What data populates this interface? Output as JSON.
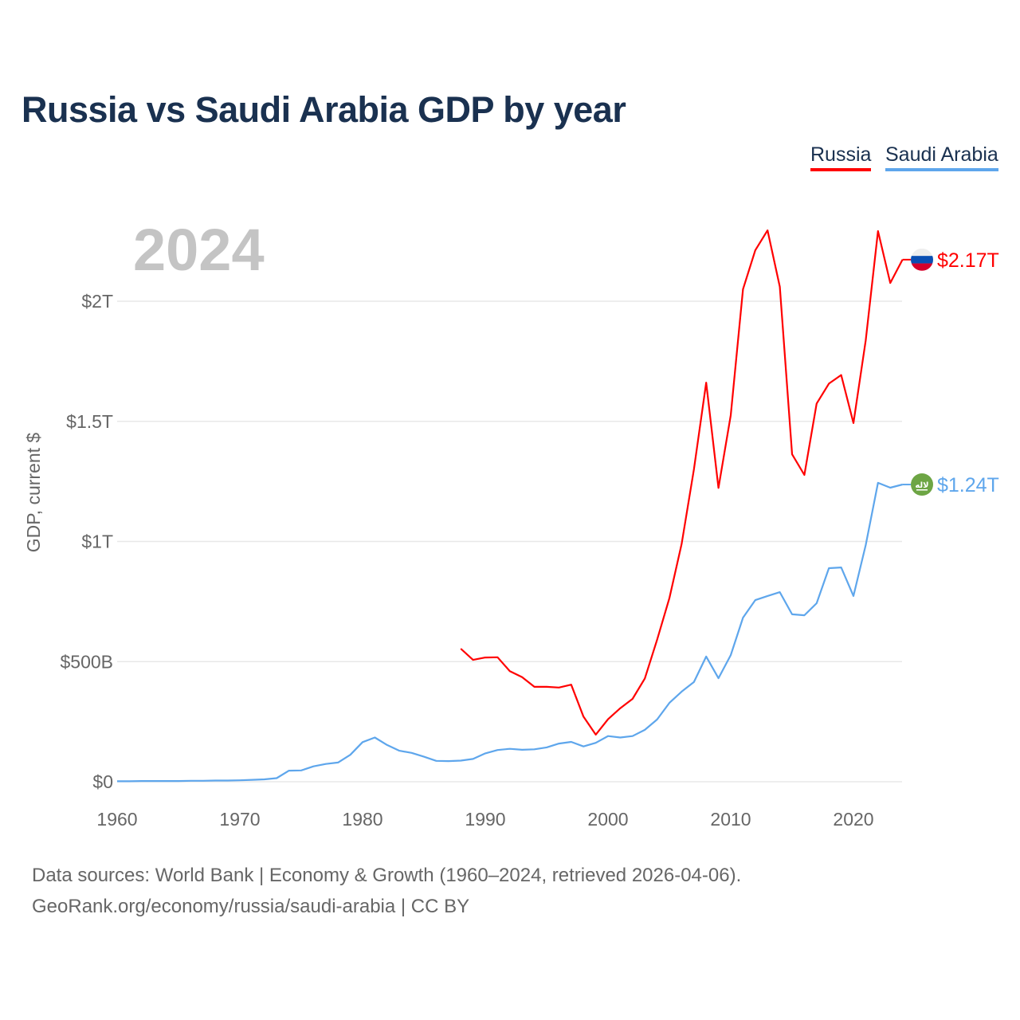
{
  "chart_data": {
    "type": "line",
    "title": "Russia vs Saudi Arabia GDP by year",
    "ylabel": "GDP, current $",
    "xlabel": "",
    "year_label": "2024",
    "xlim": [
      1960,
      2024
    ],
    "ylim": [
      0,
      2.4
    ],
    "x_ticks": [
      1960,
      1970,
      1980,
      1990,
      2000,
      2010,
      2020
    ],
    "y_ticks": [
      {
        "v": 0,
        "label": "$0"
      },
      {
        "v": 0.5,
        "label": "$500B"
      },
      {
        "v": 1,
        "label": "$1T"
      },
      {
        "v": 1.5,
        "label": "$1.5T"
      },
      {
        "v": 2,
        "label": "$2T"
      }
    ],
    "units": "trillion USD",
    "legend_placement": "top-right",
    "series": [
      {
        "name": "Russia",
        "color": "#ff0000",
        "end_label": "$2.17T",
        "flag": "russia-flag",
        "x": [
          1988,
          1989,
          1990,
          1991,
          1992,
          1993,
          1994,
          1995,
          1996,
          1997,
          1998,
          1999,
          2000,
          2001,
          2002,
          2003,
          2004,
          2005,
          2006,
          2007,
          2008,
          2009,
          2010,
          2011,
          2012,
          2013,
          2014,
          2015,
          2016,
          2017,
          2018,
          2019,
          2020,
          2021,
          2022,
          2023,
          2024
        ],
        "values": [
          0.554,
          0.507,
          0.517,
          0.518,
          0.46,
          0.435,
          0.395,
          0.395,
          0.392,
          0.404,
          0.271,
          0.196,
          0.26,
          0.306,
          0.345,
          0.43,
          0.591,
          0.764,
          0.99,
          1.3,
          1.661,
          1.223,
          1.525,
          2.05,
          2.212,
          2.295,
          2.06,
          1.363,
          1.277,
          1.574,
          1.657,
          1.693,
          1.493,
          1.837,
          2.292,
          2.076,
          2.173
        ]
      },
      {
        "name": "Saudi Arabia",
        "color": "#5ea6ec",
        "end_label": "$1.24T",
        "flag": "saudi-arabia-flag",
        "x": [
          1960,
          1961,
          1962,
          1963,
          1964,
          1965,
          1966,
          1967,
          1968,
          1969,
          1970,
          1971,
          1972,
          1973,
          1974,
          1975,
          1976,
          1977,
          1978,
          1979,
          1980,
          1981,
          1982,
          1983,
          1984,
          1985,
          1986,
          1987,
          1988,
          1989,
          1990,
          1991,
          1992,
          1993,
          1994,
          1995,
          1996,
          1997,
          1998,
          1999,
          2000,
          2001,
          2002,
          2003,
          2004,
          2005,
          2006,
          2007,
          2008,
          2009,
          2010,
          2011,
          2012,
          2013,
          2014,
          2015,
          2016,
          2017,
          2018,
          2019,
          2020,
          2021,
          2022,
          2023,
          2024
        ],
        "values": [
          0.002,
          0.002,
          0.003,
          0.003,
          0.003,
          0.003,
          0.004,
          0.004,
          0.005,
          0.005,
          0.006,
          0.008,
          0.01,
          0.015,
          0.046,
          0.047,
          0.064,
          0.074,
          0.08,
          0.112,
          0.165,
          0.184,
          0.153,
          0.129,
          0.12,
          0.104,
          0.087,
          0.086,
          0.088,
          0.095,
          0.118,
          0.132,
          0.137,
          0.133,
          0.135,
          0.143,
          0.159,
          0.166,
          0.147,
          0.162,
          0.19,
          0.184,
          0.19,
          0.216,
          0.259,
          0.328,
          0.375,
          0.415,
          0.521,
          0.431,
          0.527,
          0.683,
          0.756,
          0.773,
          0.789,
          0.697,
          0.693,
          0.743,
          0.889,
          0.892,
          0.773,
          0.985,
          1.244,
          1.224,
          1.237
        ]
      }
    ]
  },
  "footer": {
    "line1": "Data sources: World Bank | Economy & Growth (1960–2024, retrieved 2026-04-06).",
    "line2": "GeoRank.org/economy/russia/saudi-arabia | CC BY"
  }
}
